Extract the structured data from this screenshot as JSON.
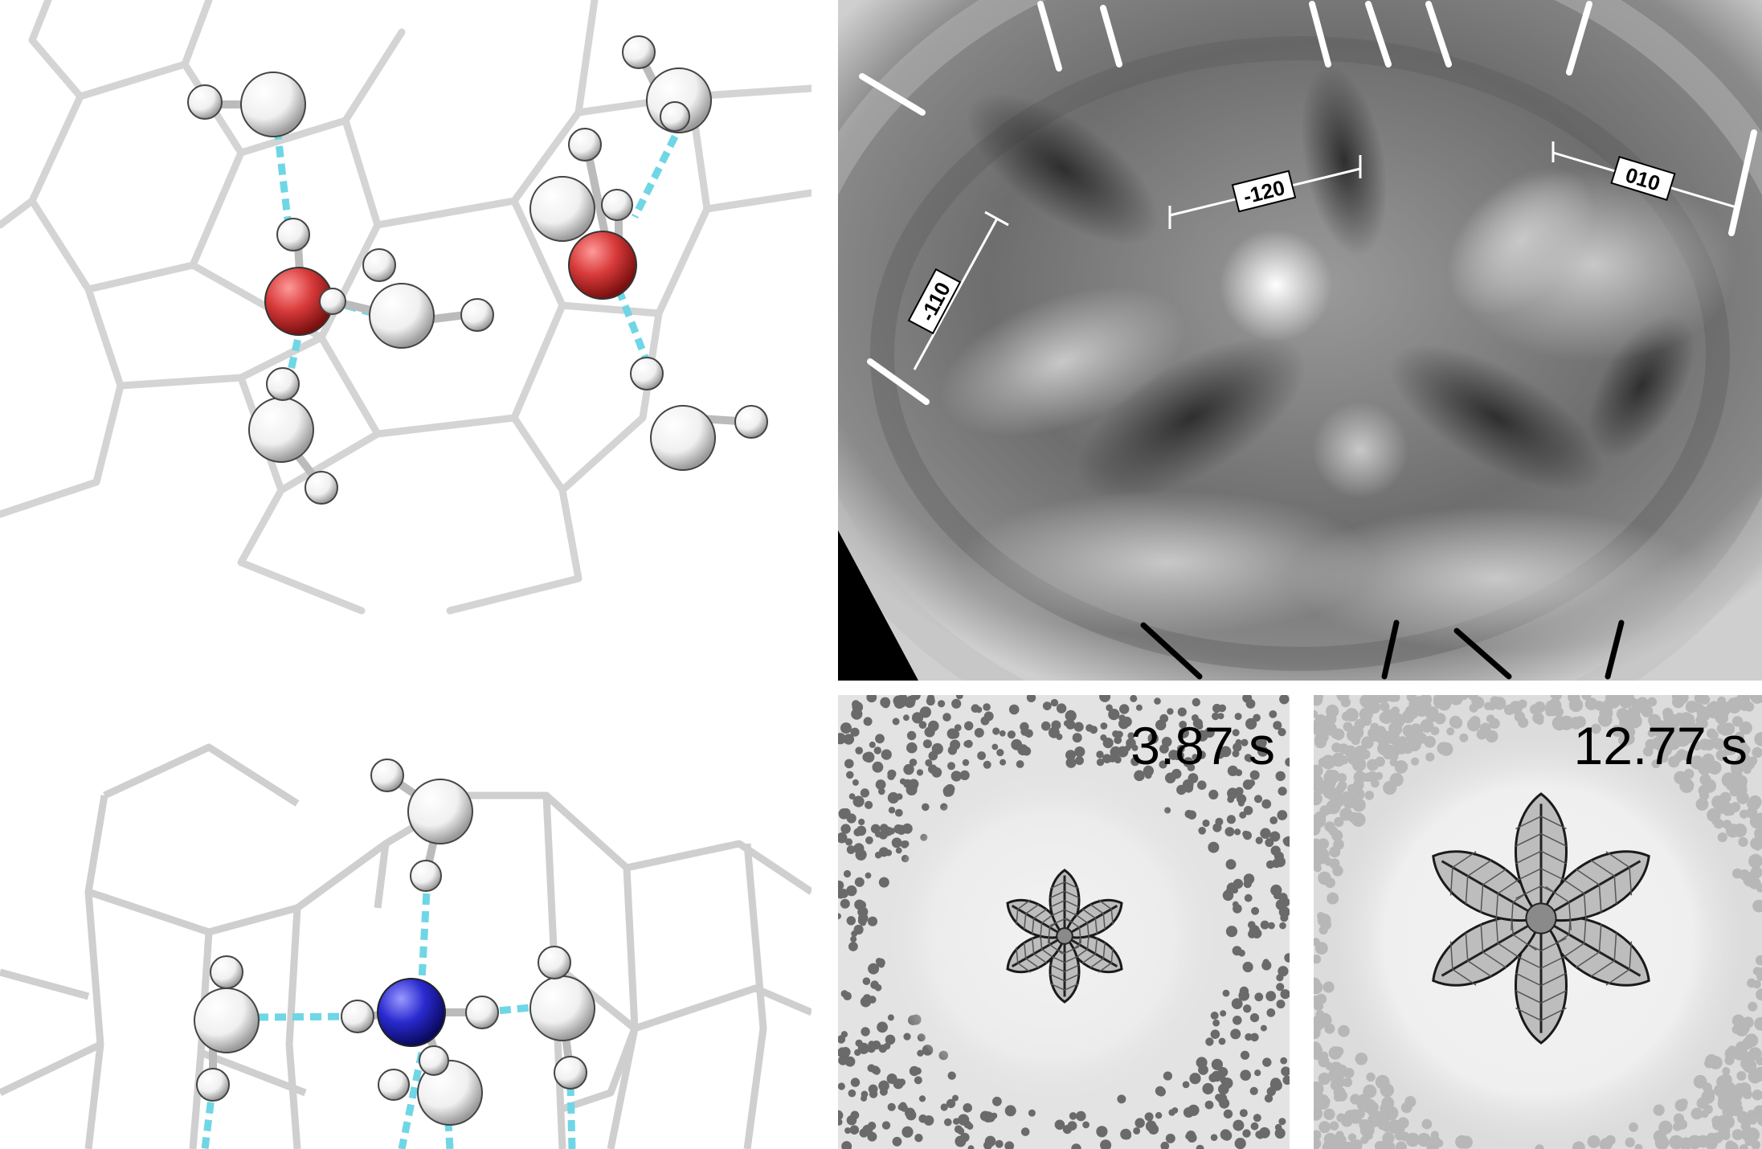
{
  "xray": {
    "labels": [
      "-120",
      "010",
      "-110"
    ]
  },
  "crystals": [
    {
      "timestamp": "3.87 s"
    },
    {
      "timestamp": "12.77 s"
    }
  ],
  "colors": {
    "oxygen_atom": "#d83a3a",
    "nitrogen_atom": "#2a2ad0",
    "hydrogen_bond": "#6fd6e6",
    "lattice": "#d0d0d0"
  }
}
